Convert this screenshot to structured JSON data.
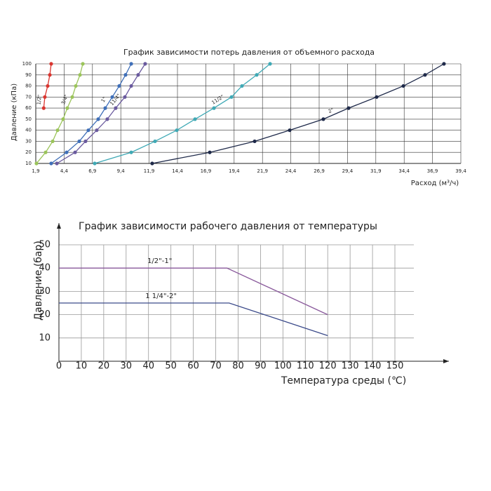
{
  "chart_data": [
    {
      "type": "line",
      "title": "График зависимости потерь давления от объемного расхода",
      "y_label": "Давление (кПа)",
      "x_label": "Расход (м³/ч)",
      "xlim": [
        1.9,
        39.4
      ],
      "ylim": [
        10,
        100
      ],
      "xticks": [
        {
          "value": 1.9,
          "label": "1,9"
        },
        {
          "value": 4.4,
          "label": "4,4"
        },
        {
          "value": 6.9,
          "label": "6,9"
        },
        {
          "value": 9.4,
          "label": "9,4"
        },
        {
          "value": 11.9,
          "label": "11,9"
        },
        {
          "value": 14.4,
          "label": "14,4"
        },
        {
          "value": 16.9,
          "label": "16,9"
        },
        {
          "value": 19.4,
          "label": "19,4"
        },
        {
          "value": 21.9,
          "label": "21,9"
        },
        {
          "value": 24.4,
          "label": "24,4"
        },
        {
          "value": 26.9,
          "label": "26,9"
        },
        {
          "value": 29.4,
          "label": "29,4"
        },
        {
          "value": 31.9,
          "label": "31,9"
        },
        {
          "value": 34.4,
          "label": "34,4"
        },
        {
          "value": 36.9,
          "label": "36,9"
        },
        {
          "value": 39.4,
          "label": "39,4"
        }
      ],
      "yticks": [
        10,
        20,
        30,
        40,
        50,
        60,
        70,
        80,
        90,
        100
      ],
      "grid": true,
      "markers": true,
      "series": [
        {
          "name": "1/2\"",
          "color": "#d9352f",
          "x": [
            2.6,
            2.7,
            2.95,
            3.14,
            3.26
          ],
          "values": [
            60,
            70,
            80,
            90,
            100
          ]
        },
        {
          "name": "3/4\"",
          "color": "#9bc45a",
          "x": [
            1.96,
            2.77,
            3.39,
            3.82,
            4.31,
            4.68,
            5.12,
            5.43,
            5.8,
            6.05
          ],
          "values": [
            10,
            20,
            30,
            40,
            50,
            60,
            70,
            80,
            90,
            100
          ]
        },
        {
          "name": "1\"",
          "color": "#3f6fb8",
          "x": [
            3.26,
            4.62,
            5.74,
            6.54,
            7.41,
            8.03,
            8.65,
            9.26,
            9.82,
            10.32
          ],
          "values": [
            10,
            20,
            30,
            40,
            50,
            60,
            70,
            80,
            90,
            100
          ]
        },
        {
          "name": "11/4\"",
          "color": "#6a5a9e",
          "x": [
            3.76,
            5.37,
            6.29,
            7.28,
            8.21,
            8.95,
            9.76,
            10.32,
            10.93,
            11.55
          ],
          "values": [
            10,
            20,
            30,
            40,
            50,
            60,
            70,
            80,
            90,
            100
          ]
        },
        {
          "name": "11/2\"",
          "color": "#3fa9b5",
          "x": [
            7.1,
            10.32,
            12.42,
            14.34,
            15.95,
            17.62,
            19.17,
            20.09,
            21.39,
            22.57
          ],
          "values": [
            10,
            20,
            30,
            40,
            50,
            60,
            70,
            80,
            90,
            100
          ]
        },
        {
          "name": "2\"",
          "color": "#1f2a4a",
          "x": [
            12.17,
            17.25,
            21.21,
            24.3,
            27.27,
            29.5,
            31.97,
            34.33,
            36.24,
            37.91
          ],
          "values": [
            10,
            20,
            30,
            40,
            50,
            60,
            70,
            80,
            90,
            100
          ]
        }
      ]
    },
    {
      "type": "line",
      "title": "График зависимости рабочего давления от температуры",
      "y_label": "Давление (бар)",
      "x_label": "Температура среды  (℃)",
      "xlim": [
        0,
        150
      ],
      "ylim": [
        0,
        50
      ],
      "xticks": [
        0,
        10,
        20,
        30,
        40,
        50,
        60,
        70,
        80,
        90,
        100,
        110,
        120,
        130,
        140,
        150
      ],
      "yticks": [
        10,
        20,
        30,
        40,
        50
      ],
      "grid": true,
      "markers": false,
      "series": [
        {
          "name": "1/2\"-1\"",
          "color": "#8a5a9c",
          "x": [
            0,
            75,
            120
          ],
          "values": [
            40,
            40,
            20
          ]
        },
        {
          "name": "1 1/4\"-2\"",
          "color": "#3b4a8a",
          "x": [
            0,
            76,
            120
          ],
          "values": [
            25,
            25,
            11
          ]
        }
      ]
    }
  ]
}
